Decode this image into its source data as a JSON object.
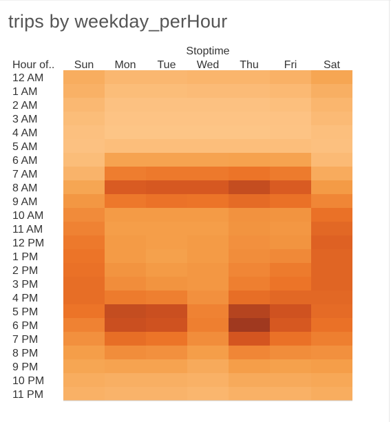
{
  "page": {
    "title": "trips by weekday_perHour"
  },
  "chart_data": {
    "type": "heatmap",
    "title": "trips by weekday_perHour",
    "column_header_title": "Stoptime",
    "row_header_title": "Hour of..",
    "x_categories": [
      "Sun",
      "Mon",
      "Tue",
      "Wed",
      "Thu",
      "Fri",
      "Sat"
    ],
    "y_categories": [
      "12 AM",
      "1 AM",
      "2 AM",
      "3 AM",
      "4 AM",
      "5 AM",
      "6 AM",
      "7 AM",
      "8 AM",
      "9 AM",
      "10 AM",
      "11 AM",
      "12 PM",
      "1 PM",
      "2 PM",
      "3 PM",
      "4 PM",
      "5 PM",
      "6 PM",
      "7 PM",
      "8 PM",
      "9 PM",
      "10 PM",
      "11 PM"
    ],
    "value_scale": "relative intensity 0-100 (no legend shown)",
    "color_low": "#fec88c",
    "color_high": "#a0391f",
    "values": [
      [
        24,
        15,
        15,
        17,
        17,
        20,
        30
      ],
      [
        20,
        10,
        10,
        11,
        11,
        13,
        22
      ],
      [
        14,
        6,
        6,
        6,
        6,
        8,
        16
      ],
      [
        10,
        4,
        4,
        4,
        4,
        5,
        12
      ],
      [
        7,
        3,
        3,
        3,
        3,
        4,
        8
      ],
      [
        6,
        9,
        9,
        9,
        9,
        9,
        7
      ],
      [
        10,
        32,
        32,
        32,
        33,
        32,
        12
      ],
      [
        18,
        55,
        57,
        57,
        60,
        56,
        25
      ],
      [
        30,
        76,
        78,
        78,
        86,
        76,
        38
      ],
      [
        40,
        58,
        61,
        60,
        66,
        62,
        50
      ],
      [
        47,
        38,
        38,
        38,
        43,
        42,
        62
      ],
      [
        52,
        36,
        36,
        36,
        42,
        40,
        68
      ],
      [
        57,
        38,
        36,
        38,
        44,
        42,
        72
      ],
      [
        60,
        38,
        34,
        38,
        46,
        48,
        70
      ],
      [
        62,
        42,
        38,
        40,
        50,
        56,
        70
      ],
      [
        64,
        46,
        42,
        40,
        54,
        60,
        70
      ],
      [
        64,
        56,
        54,
        44,
        64,
        68,
        68
      ],
      [
        60,
        86,
        84,
        52,
        92,
        82,
        66
      ],
      [
        52,
        84,
        82,
        54,
        100,
        78,
        62
      ],
      [
        44,
        64,
        60,
        46,
        80,
        62,
        54
      ],
      [
        36,
        46,
        44,
        36,
        50,
        46,
        44
      ],
      [
        30,
        32,
        32,
        26,
        36,
        34,
        36
      ],
      [
        24,
        22,
        22,
        20,
        26,
        26,
        28
      ],
      [
        20,
        18,
        18,
        16,
        20,
        20,
        24
      ]
    ],
    "legend": "none"
  }
}
